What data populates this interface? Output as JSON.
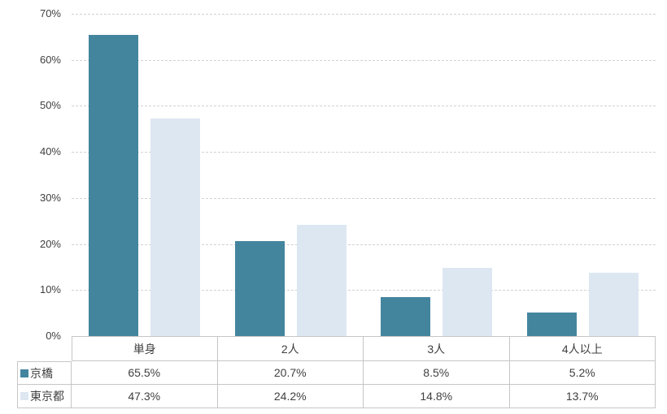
{
  "chart_data": {
    "type": "bar",
    "title": "",
    "xlabel": "",
    "ylabel": "",
    "categories": [
      "単身",
      "2人",
      "3人",
      "4人以上"
    ],
    "series": [
      {
        "name": "京橋",
        "color": "#44859E",
        "values": [
          65.5,
          20.7,
          8.5,
          5.2
        ],
        "display_values": [
          "65.5%",
          "20.7%",
          "8.5%",
          "5.2%"
        ]
      },
      {
        "name": "東京都",
        "color": "#DDE7F2",
        "values": [
          47.3,
          24.2,
          14.8,
          13.7
        ],
        "display_values": [
          "47.3%",
          "24.2%",
          "14.8%",
          "13.7%"
        ]
      }
    ],
    "ylim": [
      0,
      70
    ],
    "ytick_step": 10,
    "ytick_labels": [
      "0%",
      "10%",
      "20%",
      "30%",
      "40%",
      "50%",
      "60%",
      "70%"
    ],
    "grid": true,
    "legend_position": "data-table-left"
  },
  "colors": {
    "gridline": "#d2d2d2",
    "table_border": "#c6c6c6",
    "text": "#3f3f3f",
    "background": "#ffffff"
  }
}
